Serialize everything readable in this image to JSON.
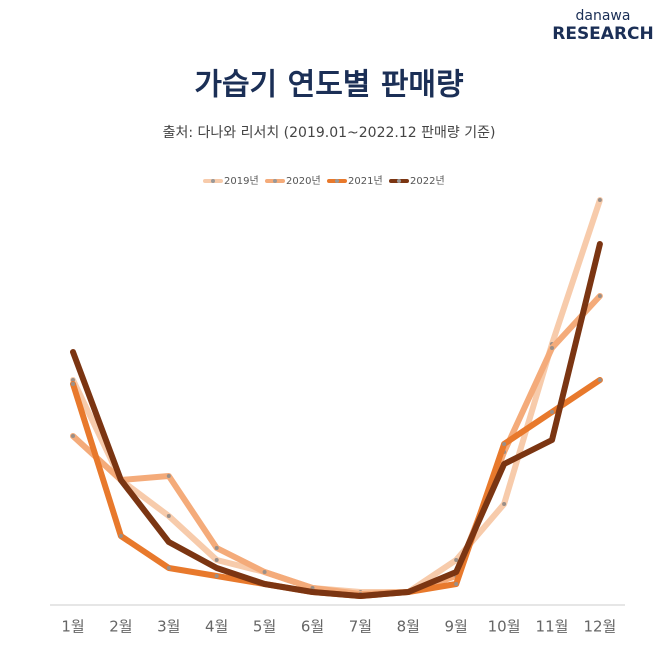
{
  "logo": {
    "top": "danawa",
    "bottom": "RESEARCH"
  },
  "chart_data": {
    "type": "line",
    "title": "가습기 연도별 판매량",
    "subtitle": "출처: 다나와 리서치 (2019.01~2022.12 판매량 기준)",
    "categories": [
      "1월",
      "2월",
      "3월",
      "4월",
      "5월",
      "6월",
      "7월",
      "8월",
      "9월",
      "10월",
      "11월",
      "12월"
    ],
    "ylim": [
      0,
      100
    ],
    "series": [
      {
        "name": "2019년",
        "color": "#f7cbab",
        "values": [
          55,
          30,
          21,
          10,
          7,
          3,
          2,
          2,
          10,
          24,
          64,
          100
        ]
      },
      {
        "name": "2020년",
        "color": "#f4ab7a",
        "values": [
          41,
          30,
          31,
          13,
          7,
          3,
          1.5,
          2,
          6,
          37,
          63,
          76
        ]
      },
      {
        "name": "2021년",
        "color": "#e8792c",
        "values": [
          54,
          16,
          8,
          6,
          4,
          2,
          1,
          2,
          4,
          39,
          47,
          55
        ]
      },
      {
        "name": "2022년",
        "color": "#7b3512",
        "values": [
          62,
          30,
          14.5,
          8,
          4,
          2,
          1,
          2,
          7,
          34,
          40,
          89
        ]
      }
    ]
  }
}
